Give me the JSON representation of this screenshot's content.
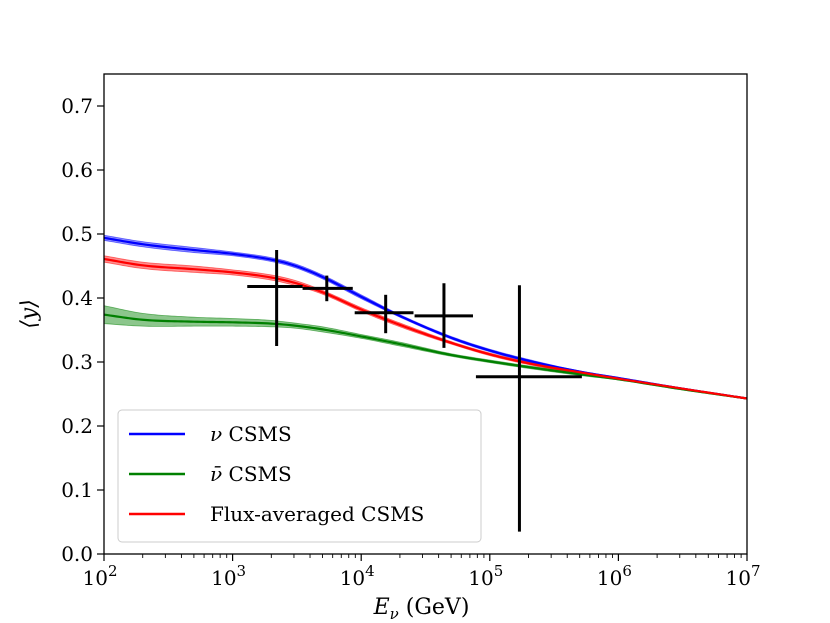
{
  "chart_data": {
    "type": "line",
    "title": "",
    "xlabel": "E_ν (GeV)",
    "ylabel": "⟨y⟩",
    "xscale": "log",
    "xlim": [
      100,
      10000000
    ],
    "ylim": [
      0.0,
      0.75
    ],
    "x_ticks": [
      {
        "value": 100,
        "base": "10",
        "exp": "2"
      },
      {
        "value": 1000,
        "base": "10",
        "exp": "3"
      },
      {
        "value": 10000,
        "base": "10",
        "exp": "4"
      },
      {
        "value": 100000,
        "base": "10",
        "exp": "5"
      },
      {
        "value": 1000000,
        "base": "10",
        "exp": "6"
      },
      {
        "value": 10000000,
        "base": "10",
        "exp": "7"
      }
    ],
    "y_ticks": [
      "0.0",
      "0.1",
      "0.2",
      "0.3",
      "0.4",
      "0.5",
      "0.6",
      "0.7"
    ],
    "grid": false,
    "legend_position": "lower-left",
    "series": [
      {
        "name": "ν CSMS",
        "label_symbol": "ν",
        "label_rest": " CSMS",
        "color": "#0000ff",
        "x": [
          100,
          200,
          500,
          1000,
          2000,
          3000,
          5000,
          10000,
          20000,
          50000,
          100000,
          200000,
          500000,
          1000000,
          3000000,
          10000000
        ],
        "y": [
          0.494,
          0.484,
          0.475,
          0.469,
          0.46,
          0.451,
          0.433,
          0.402,
          0.372,
          0.338,
          0.318,
          0.302,
          0.285,
          0.275,
          0.259,
          0.243
        ],
        "band": [
          0.004,
          0.004,
          0.004,
          0.003,
          0.003,
          0.003,
          0.003,
          0.003,
          0.002,
          0.002,
          0.002,
          0.002,
          0.001,
          0.001,
          0.001,
          0.001
        ]
      },
      {
        "name": "ν̄ CSMS",
        "label_symbol": "ν̄",
        "label_rest": " CSMS",
        "color": "#008000",
        "x": [
          100,
          200,
          500,
          1000,
          2000,
          3000,
          5000,
          10000,
          20000,
          50000,
          100000,
          200000,
          500000,
          1000000,
          3000000,
          10000000
        ],
        "y": [
          0.374,
          0.366,
          0.363,
          0.362,
          0.36,
          0.357,
          0.351,
          0.34,
          0.328,
          0.311,
          0.301,
          0.292,
          0.281,
          0.273,
          0.258,
          0.243
        ],
        "band": [
          0.014,
          0.01,
          0.007,
          0.006,
          0.005,
          0.004,
          0.004,
          0.003,
          0.003,
          0.002,
          0.002,
          0.002,
          0.002,
          0.001,
          0.001,
          0.001
        ]
      },
      {
        "name": "Flux-averaged CSMS",
        "label_symbol": "",
        "label_rest": "Flux-averaged CSMS",
        "color": "#ff0000",
        "x": [
          100,
          200,
          500,
          1000,
          2000,
          3000,
          5000,
          10000,
          20000,
          50000,
          100000,
          200000,
          500000,
          1000000,
          3000000,
          10000000
        ],
        "y": [
          0.461,
          0.451,
          0.445,
          0.44,
          0.432,
          0.424,
          0.409,
          0.382,
          0.358,
          0.33,
          0.312,
          0.298,
          0.284,
          0.274,
          0.259,
          0.243
        ],
        "band": [
          0.005,
          0.005,
          0.005,
          0.004,
          0.004,
          0.004,
          0.003,
          0.003,
          0.003,
          0.002,
          0.002,
          0.002,
          0.002,
          0.001,
          0.001,
          0.001
        ]
      }
    ],
    "data_points": {
      "color": "#000000",
      "points": [
        {
          "x": 2200,
          "y": 0.418,
          "xlo": 1300,
          "xhi": 3500,
          "ylo": 0.325,
          "yhi": 0.475
        },
        {
          "x": 5400,
          "y": 0.415,
          "xlo": 3500,
          "xhi": 8600,
          "ylo": 0.395,
          "yhi": 0.435
        },
        {
          "x": 15500,
          "y": 0.377,
          "xlo": 8900,
          "xhi": 25500,
          "ylo": 0.345,
          "yhi": 0.405
        },
        {
          "x": 44000,
          "y": 0.372,
          "xlo": 26000,
          "xhi": 74000,
          "ylo": 0.322,
          "yhi": 0.423
        },
        {
          "x": 170000,
          "y": 0.277,
          "xlo": 78000,
          "xhi": 520000,
          "ylo": 0.035,
          "yhi": 0.42
        }
      ]
    }
  }
}
